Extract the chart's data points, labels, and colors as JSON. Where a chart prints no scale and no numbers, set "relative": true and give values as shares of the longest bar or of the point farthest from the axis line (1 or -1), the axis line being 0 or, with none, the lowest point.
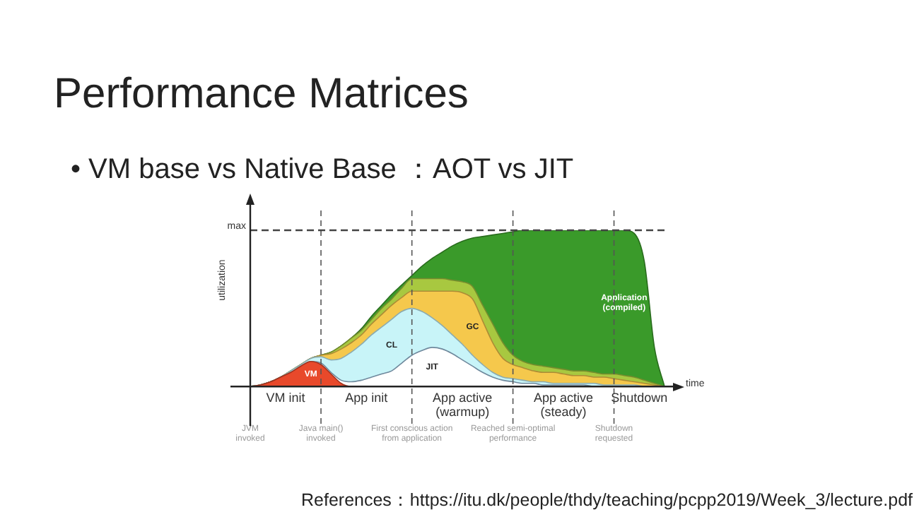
{
  "chart_data": {
    "type": "area",
    "stacked": true,
    "relative": true,
    "title": "Performance Matrices",
    "subtitle": "• VM base vs Native Base ：AOT vs JIT",
    "xlabel": "time",
    "ylabel": "utilization",
    "categories": [
      "JVM invoked",
      null,
      null,
      null,
      null,
      null,
      null,
      "Java main() invoked",
      null,
      null,
      null,
      null,
      null,
      null,
      null,
      null,
      "First conscious action from application",
      null,
      null,
      null,
      null,
      null,
      null,
      null,
      null,
      null,
      "Reached semi-optimal performance",
      null,
      null,
      null,
      null,
      null,
      null,
      null,
      null,
      null,
      "Shutdown requested",
      null,
      null,
      null,
      null,
      null
    ],
    "series": [
      {
        "name": "VM",
        "color": "#e8492b",
        "values": [
          0,
          0.01,
          0.03,
          0.06,
          0.09,
          0.13,
          0.16,
          0.14,
          0.08,
          0.02,
          0,
          0,
          0,
          0,
          0,
          0,
          0,
          0,
          0,
          0,
          0,
          0,
          0,
          0,
          0,
          0,
          0,
          0,
          0,
          0,
          0,
          0,
          0,
          0,
          0,
          0,
          0,
          0,
          0,
          0,
          0,
          0
        ]
      },
      {
        "name": "JIT",
        "color": "#ffffff",
        "values": [
          0,
          0,
          0,
          0,
          0,
          0,
          0,
          0.01,
          0.01,
          0.02,
          0.03,
          0.04,
          0.06,
          0.08,
          0.1,
          0.15,
          0.2,
          0.23,
          0.25,
          0.24,
          0.21,
          0.17,
          0.13,
          0.09,
          0.06,
          0.04,
          0.03,
          0.02,
          0.02,
          0.01,
          0.01,
          0.01,
          0.01,
          0.01,
          0,
          0,
          0,
          0,
          0,
          0,
          0,
          0
        ]
      },
      {
        "name": "CL",
        "color": "#c8f4f8",
        "values": [
          0,
          0,
          0,
          0,
          0.01,
          0.01,
          0.02,
          0.04,
          0.08,
          0.14,
          0.19,
          0.23,
          0.27,
          0.3,
          0.33,
          0.33,
          0.3,
          0.25,
          0.19,
          0.15,
          0.12,
          0.1,
          0.07,
          0.05,
          0.03,
          0.02,
          0.02,
          0.02,
          0.01,
          0.02,
          0.01,
          0.01,
          0.01,
          0.01,
          0.02,
          0.01,
          0.01,
          0.01,
          0.01,
          0,
          0,
          0
        ]
      },
      {
        "name": "GC",
        "color": "#f5c84c",
        "values": [
          0,
          0,
          0,
          0,
          0,
          0,
          0,
          0.01,
          0.04,
          0.06,
          0.06,
          0.06,
          0.07,
          0.08,
          0.09,
          0.09,
          0.11,
          0.13,
          0.17,
          0.22,
          0.28,
          0.33,
          0.36,
          0.28,
          0.19,
          0.12,
          0.09,
          0.08,
          0.07,
          0.06,
          0.07,
          0.06,
          0.05,
          0.05,
          0.04,
          0.05,
          0.04,
          0.03,
          0.02,
          0.02,
          0.01,
          0
        ]
      },
      {
        "color": "#a8c840",
        "values": [
          0,
          0,
          0,
          0,
          0,
          0,
          0,
          0,
          0.01,
          0.02,
          0.03,
          0.03,
          0.03,
          0.04,
          0.04,
          0.06,
          0.08,
          0.08,
          0.08,
          0.08,
          0.07,
          0.07,
          0.08,
          0.1,
          0.12,
          0.1,
          0.06,
          0.04,
          0.04,
          0.04,
          0.03,
          0.03,
          0.03,
          0.03,
          0.03,
          0.02,
          0.03,
          0.03,
          0.03,
          0.02,
          0.01,
          0
        ]
      },
      {
        "name": "Application (compiled)",
        "color": "#3a9a2a",
        "values": [
          0,
          0,
          0,
          0,
          0,
          0,
          0,
          0,
          0,
          0,
          0,
          0.01,
          0.02,
          0.02,
          0.03,
          0.02,
          0.02,
          0.08,
          0.13,
          0.17,
          0.22,
          0.26,
          0.31,
          0.44,
          0.57,
          0.7,
          0.79,
          0.84,
          0.86,
          0.87,
          0.88,
          0.89,
          0.9,
          0.9,
          0.91,
          0.92,
          0.92,
          0.93,
          0.92,
          0.76,
          0.23,
          0
        ]
      }
    ],
    "ref_lines": [
      {
        "axis": "x",
        "value": "Java main() invoked"
      },
      {
        "axis": "x",
        "value": "First conscious action from application"
      },
      {
        "axis": "x",
        "value": "Reached semi-optimal performance"
      },
      {
        "axis": "x",
        "value": "Shutdown requested"
      },
      {
        "axis": "y",
        "value": 1,
        "label": "max"
      }
    ],
    "annotations": [
      "VM init",
      "App init",
      "App active (warmup)",
      "App active (steady)",
      "Shutdown",
      "References：https://itu.dk/people/thdy/teaching/pcpp2019/Week_3/lecture.pdf"
    ]
  }
}
